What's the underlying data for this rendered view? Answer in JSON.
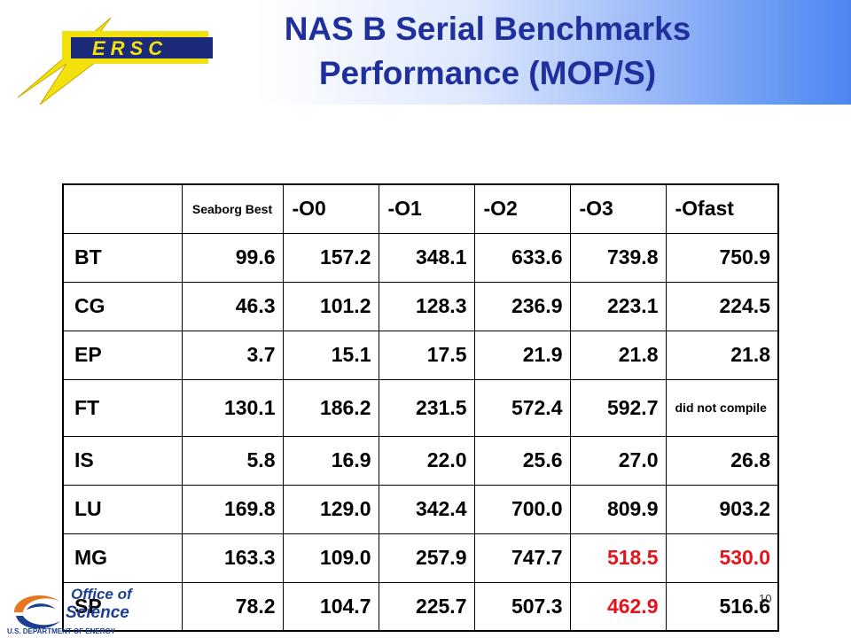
{
  "header": {
    "logo_text": "ERSC",
    "title_line1": "NAS B Serial Benchmarks",
    "title_line2": "Performance (MOP/S)"
  },
  "table": {
    "columns": [
      "",
      "Seaborg Best",
      "-O0",
      "-O1",
      "-O2",
      "-O3",
      "-Ofast"
    ],
    "rows": [
      {
        "name": "BT",
        "seaborg": "99.6",
        "o0": "157.2",
        "o1": "348.1",
        "o2": "633.6",
        "o3": "739.8",
        "ofast": "750.9"
      },
      {
        "name": "CG",
        "seaborg": "46.3",
        "o0": "101.2",
        "o1": "128.3",
        "o2": "236.9",
        "o3": "223.1",
        "ofast": "224.5"
      },
      {
        "name": "EP",
        "seaborg": "3.7",
        "o0": "15.1",
        "o1": "17.5",
        "o2": "21.9",
        "o3": "21.8",
        "ofast": "21.8"
      },
      {
        "name": "FT",
        "seaborg": "130.1",
        "o0": "186.2",
        "o1": "231.5",
        "o2": "572.4",
        "o3": "592.7",
        "ofast": "did not compile"
      },
      {
        "name": "IS",
        "seaborg": "5.8",
        "o0": "16.9",
        "o1": "22.0",
        "o2": "25.6",
        "o3": "27.0",
        "ofast": "26.8"
      },
      {
        "name": "LU",
        "seaborg": "169.8",
        "o0": "129.0",
        "o1": "342.4",
        "o2": "700.0",
        "o3": "809.9",
        "ofast": "903.2"
      },
      {
        "name": "MG",
        "seaborg": "163.3",
        "o0": "109.0",
        "o1": "257.9",
        "o2": "747.7",
        "o3": "518.5",
        "ofast": "530.0"
      },
      {
        "name": "SP",
        "seaborg": "78.2",
        "o0": "104.7",
        "o1": "225.7",
        "o2": "507.3",
        "o3": "462.9",
        "ofast": "516.6"
      }
    ],
    "highlight_color": "#e5141b"
  },
  "footer": {
    "org_line1": "Office of",
    "org_line2": "Science",
    "org_line3": "U.S. DEPARTMENT OF ENERGY",
    "page_number": "10"
  }
}
